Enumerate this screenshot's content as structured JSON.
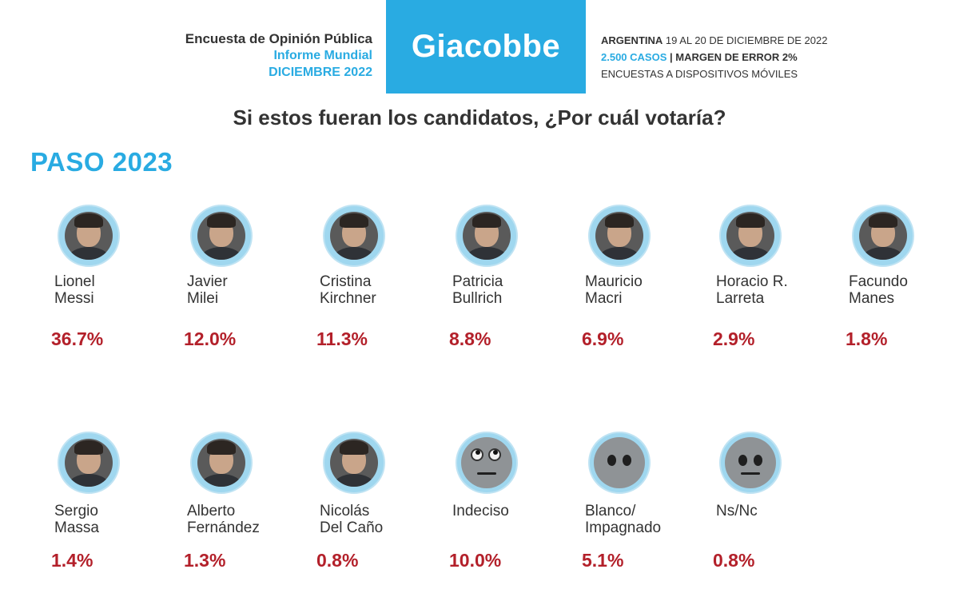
{
  "header": {
    "left_line1": "Encuesta de Opinión Pública",
    "left_line2": "Informe Mundial",
    "left_line3": "DICIEMBRE 2022",
    "brand": "Giacobbe",
    "right_country": "ARGENTINA",
    "right_dates": " 19 AL 20 DE DICIEMBRE DE 2022",
    "right_cases": "2.500 CASOS",
    "right_margin": " | MARGEN DE ERROR 2%",
    "right_method": "ENCUESTAS A DISPOSITIVOS MÓVILES"
  },
  "question": "Si estos fueran los candidatos, ¿Por cuál votaría?",
  "section_title": "PASO 2023",
  "colors": {
    "accent": "#29abe2",
    "percent": "#b3202a",
    "avatar_ring": "#9fd7ef"
  },
  "chart_data": {
    "type": "table",
    "title": "Si estos fueran los candidatos, ¿Por cuál votaría?",
    "subtitle": "PASO 2023",
    "categories": [
      "Lionel Messi",
      "Javier Milei",
      "Cristina Kirchner",
      "Patricia Bullrich",
      "Mauricio Macri",
      "Horacio R. Larreta",
      "Facundo Manes",
      "Sergio Massa",
      "Alberto Fernández",
      "Nicolás Del Caño",
      "Indeciso",
      "Blanco/ Impagnado",
      "Ns/Nc"
    ],
    "values": [
      36.7,
      12.0,
      11.3,
      8.8,
      6.9,
      2.9,
      1.8,
      1.4,
      1.3,
      0.8,
      10.0,
      5.1,
      0.8
    ],
    "candidates": [
      {
        "line1": "Lionel",
        "line2": "Messi",
        "pct": "36.7%",
        "icon": "portrait"
      },
      {
        "line1": "Javier",
        "line2": "Milei",
        "pct": "12.0%",
        "icon": "portrait"
      },
      {
        "line1": "Cristina",
        "line2": "Kirchner",
        "pct": "11.3%",
        "icon": "portrait"
      },
      {
        "line1": "Patricia",
        "line2": "Bullrich",
        "pct": "8.8%",
        "icon": "portrait"
      },
      {
        "line1": "Mauricio",
        "line2": "Macri",
        "pct": "6.9%",
        "icon": "portrait"
      },
      {
        "line1": "Horacio R.",
        "line2": "Larreta",
        "pct": "2.9%",
        "icon": "portrait"
      },
      {
        "line1": "Facundo",
        "line2": "Manes",
        "pct": "1.8%",
        "icon": "portrait"
      },
      {
        "line1": "Sergio",
        "line2": "Massa",
        "pct": "1.4%",
        "icon": "portrait"
      },
      {
        "line1": "Alberto",
        "line2": "Fernández",
        "pct": "1.3%",
        "icon": "portrait"
      },
      {
        "line1": "Nicolás",
        "line2": "Del Caño",
        "pct": "0.8%",
        "icon": "portrait"
      },
      {
        "line1": "Indeciso",
        "line2": "",
        "pct": "10.0%",
        "icon": "eye-roll-emoji"
      },
      {
        "line1": "Blanco/",
        "line2": "Impagnado",
        "pct": "5.1%",
        "icon": "no-mouth-emoji"
      },
      {
        "line1": "Ns/Nc",
        "line2": "",
        "pct": "0.8%",
        "icon": "neutral-face-emoji"
      }
    ]
  }
}
